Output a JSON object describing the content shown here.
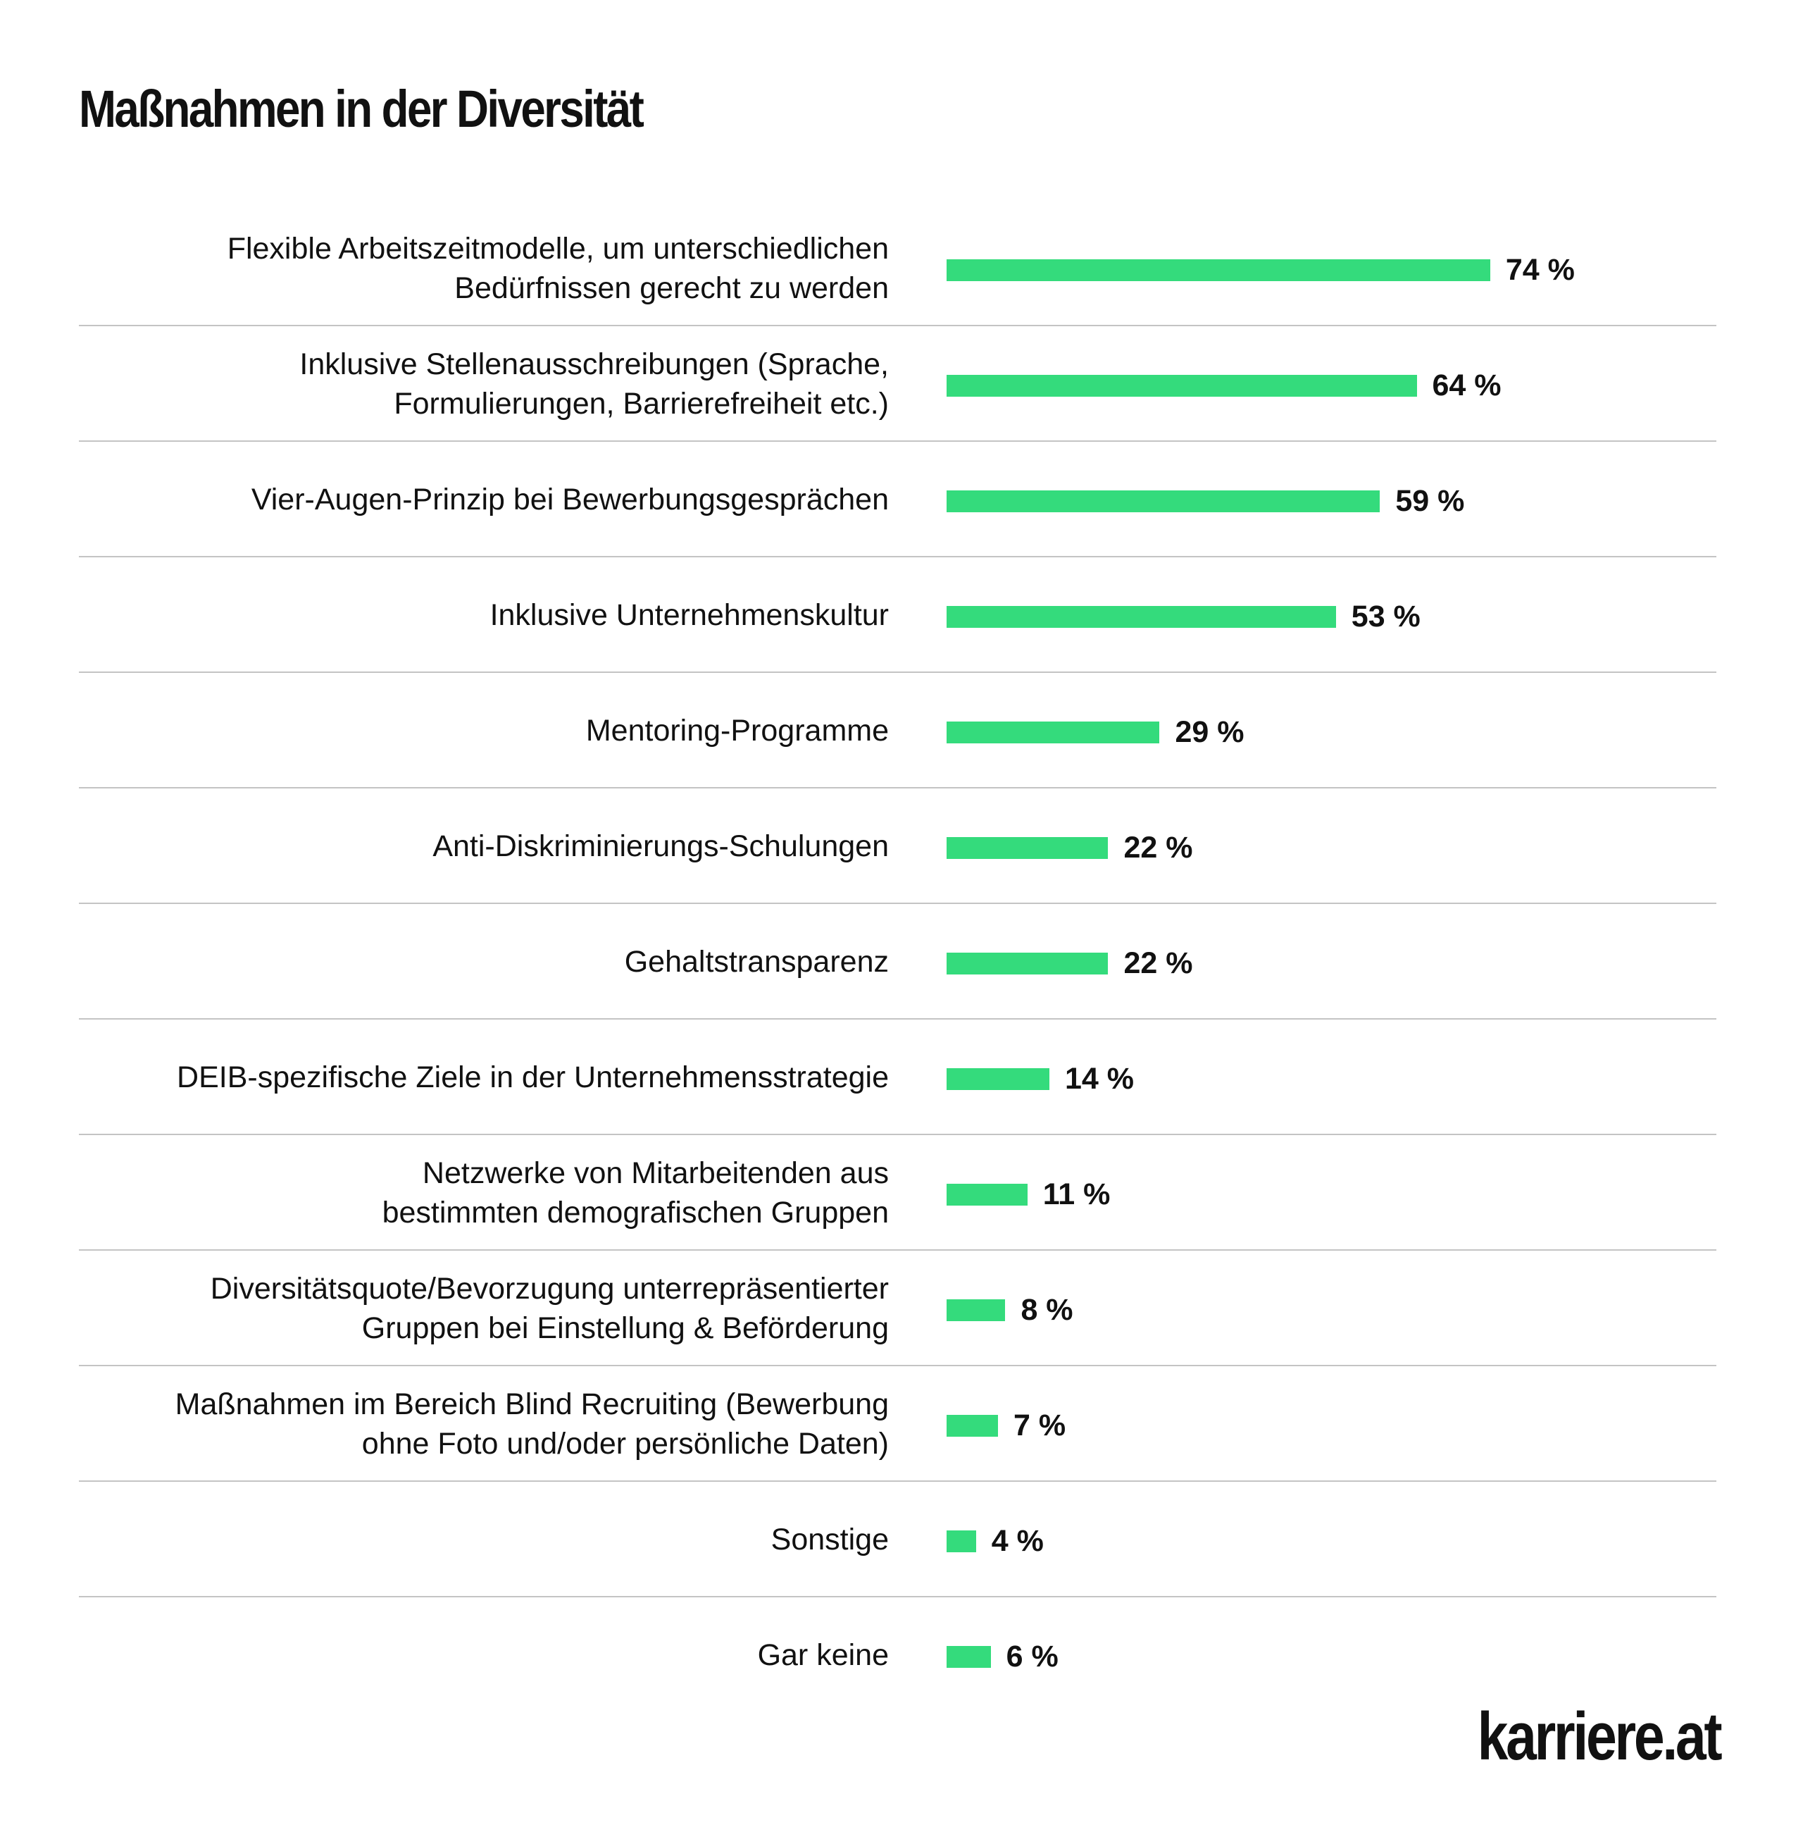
{
  "chart_data": {
    "type": "bar",
    "orientation": "horizontal",
    "title": "Maßnahmen in der Diversität",
    "xlabel": "",
    "ylabel": "",
    "xlim": [
      0,
      100
    ],
    "grid": false,
    "colors": {
      "bar": "#34db7c",
      "divider": "#c4c4c4",
      "text": "#111111"
    },
    "categories": [
      "Flexible Arbeitszeitmodelle, um unterschiedlichen\nBedürfnissen gerecht zu werden",
      "Inklusive Stellenausschreibungen (Sprache,\nFormulierungen, Barrierefreiheit etc.)",
      "Vier-Augen-Prinzip bei Bewerbungsgesprächen",
      "Inklusive Unternehmenskultur",
      "Mentoring-Programme",
      "Anti-Diskriminierungs-Schulungen",
      "Gehaltstransparenz",
      "DEIB-spezifische Ziele in der Unternehmensstrategie",
      "Netzwerke von Mitarbeitenden aus\nbestimmten demografischen Gruppen",
      "Diversitätsquote/Bevorzugung unterrepräsentierter\nGruppen bei Einstellung & Beförderung",
      "Maßnahmen im Bereich Blind Recruiting (Bewerbung\nohne Foto und/oder persönliche Daten)",
      "Sonstige",
      "Gar keine"
    ],
    "values": [
      74,
      64,
      59,
      53,
      29,
      22,
      22,
      14,
      11,
      8,
      7,
      4,
      6
    ],
    "value_labels": [
      "74 %",
      "64 %",
      "59 %",
      "53 %",
      "29 %",
      "22 %",
      "22 %",
      "14 %",
      "11 %",
      "8 %",
      "7 %",
      "4 %",
      "6 %"
    ]
  },
  "brand": {
    "logo_text": "karriere.at"
  }
}
